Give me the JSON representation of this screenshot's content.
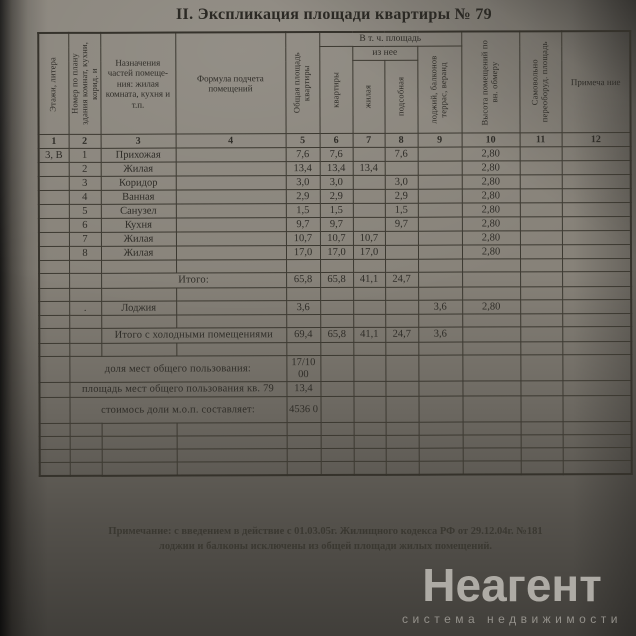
{
  "title": "II. Экспликация площади квартиры № 79",
  "header": {
    "col1": "Этажи, литера",
    "col2": "Номер по плану здания комнат, кухни, корид. и",
    "col3": "Назначения частей помеще- ния: жилая комната, кухня и т.п.",
    "col4": "Формула подчета помещений",
    "col5": "Общая площадь квартиры",
    "group_6_9": "В т. ч. площадь",
    "col6": "квартиры",
    "group_7_8": "из нее",
    "col7": "жилая",
    "col8": "подсобная",
    "col9": "лоджий, балконов террас, веранд",
    "col10": "Высота помещений по вн. обмеру",
    "col11": "Самовольно переоборуд. площадь",
    "col12": "Примеча ние",
    "numbers": [
      "1",
      "2",
      "3",
      "4",
      "5",
      "6",
      "7",
      "8",
      "9",
      "10",
      "11",
      "12"
    ]
  },
  "table": {
    "rows": [
      {
        "type": "data",
        "cells": [
          "3, В",
          "1",
          "Прихожая",
          "",
          "7,6",
          "7,6",
          "",
          "7,6",
          "",
          "2,80",
          "",
          ""
        ]
      },
      {
        "type": "data",
        "cells": [
          "",
          "2",
          "Жилая",
          "",
          "13,4",
          "13,4",
          "13,4",
          "",
          "",
          "2,80",
          "",
          ""
        ]
      },
      {
        "type": "data",
        "cells": [
          "",
          "3",
          "Коридор",
          "",
          "3,0",
          "3,0",
          "",
          "3,0",
          "",
          "2,80",
          "",
          ""
        ]
      },
      {
        "type": "data",
        "cells": [
          "",
          "4",
          "Ванная",
          "",
          "2,9",
          "2,9",
          "",
          "2,9",
          "",
          "2,80",
          "",
          ""
        ]
      },
      {
        "type": "data",
        "cells": [
          "",
          "5",
          "Санузел",
          "",
          "1,5",
          "1,5",
          "",
          "1,5",
          "",
          "2,80",
          "",
          ""
        ]
      },
      {
        "type": "data",
        "cells": [
          "",
          "6",
          "Кухня",
          "",
          "9,7",
          "9,7",
          "",
          "9,7",
          "",
          "2,80",
          "",
          ""
        ]
      },
      {
        "type": "data",
        "cells": [
          "",
          "7",
          "Жилая",
          "",
          "10,7",
          "10,7",
          "10,7",
          "",
          "",
          "2,80",
          "",
          ""
        ]
      },
      {
        "type": "data",
        "cells": [
          "",
          "8",
          "Жилая",
          "",
          "17,0",
          "17,0",
          "17,0",
          "",
          "",
          "2,80",
          "",
          ""
        ]
      },
      {
        "type": "empty"
      },
      {
        "type": "summary",
        "lead": 2,
        "label": "Итого:",
        "values": [
          "65,8",
          "65,8",
          "41,1",
          "24,7",
          "",
          "",
          "",
          ""
        ]
      },
      {
        "type": "empty"
      },
      {
        "type": "data",
        "cells": [
          "",
          ".",
          "Лоджия",
          "",
          "3,6",
          "",
          "",
          "",
          "3,6",
          "2,80",
          "",
          ""
        ]
      },
      {
        "type": "empty"
      },
      {
        "type": "summary",
        "lead": 2,
        "label": "Итого с холодными помещениями",
        "values": [
          "69,4",
          "65,8",
          "41,1",
          "24,7",
          "3,6",
          "",
          "",
          ""
        ]
      },
      {
        "type": "empty"
      },
      {
        "type": "summary",
        "lead": 1,
        "tall": true,
        "label": "доля мест общего пользования:",
        "values": [
          "17/10 00",
          "",
          "",
          "",
          "",
          "",
          "",
          ""
        ]
      },
      {
        "type": "summary",
        "lead": 1,
        "label": "площадь мест общего пользования кв. 79",
        "values": [
          "13,4",
          "",
          "",
          "",
          "",
          "",
          "",
          ""
        ]
      },
      {
        "type": "summary",
        "lead": 1,
        "tall": true,
        "label": "стоимось доли м.о.п. составляет:",
        "values": [
          "4536 0",
          "",
          "",
          "",
          "",
          "",
          "",
          ""
        ]
      },
      {
        "type": "empty"
      },
      {
        "type": "empty"
      },
      {
        "type": "empty"
      },
      {
        "type": "empty"
      }
    ]
  },
  "note": {
    "line1": "Примечание: с введением в действие с 01.03.05г. Жилищного кодекса РФ от 29.12.04г. №181",
    "line2": "лоджии и балконы  исключены из  общей  площади жилых помещений."
  },
  "watermark": {
    "brand": "Неагент",
    "tagline": "система недвижимости"
  }
}
